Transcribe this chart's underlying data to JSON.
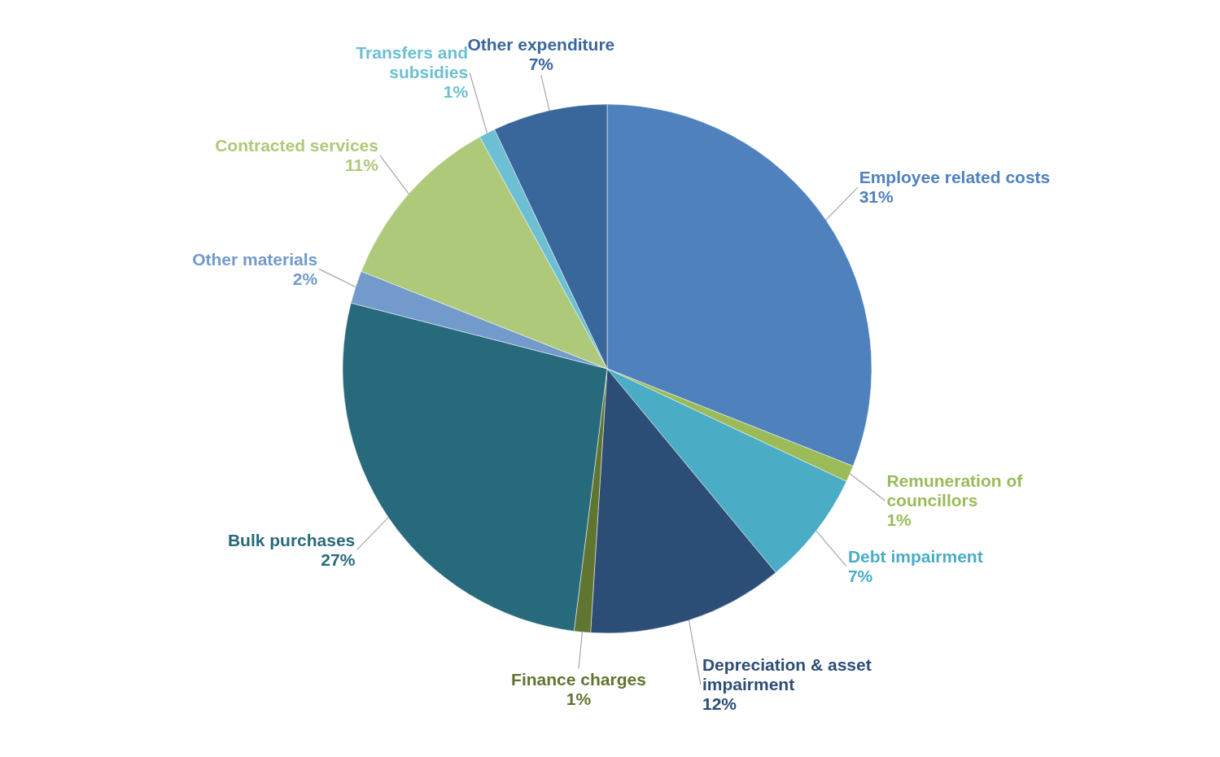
{
  "chart_data": {
    "type": "pie",
    "categories": [
      "Employee related costs",
      "Remuneration of councillors",
      "Debt impairment",
      "Depreciation & asset impairment",
      "Finance charges",
      "Bulk purchases",
      "Other materials",
      "Contracted services",
      "Transfers and subsidies",
      "Other expenditure"
    ],
    "values": [
      31,
      1,
      7,
      12,
      1,
      27,
      2,
      11,
      1,
      7
    ],
    "value_labels": [
      "31%",
      "1%",
      "7%",
      "12%",
      "1%",
      "27%",
      "2%",
      "11%",
      "1%",
      "7%"
    ],
    "colors": [
      "#4f81bd",
      "#9bbb59",
      "#4bacc6",
      "#2c4d75",
      "#5f7530",
      "#276a7c",
      "#729aca",
      "#afc97a",
      "#6dbfd3",
      "#3a679b"
    ]
  }
}
